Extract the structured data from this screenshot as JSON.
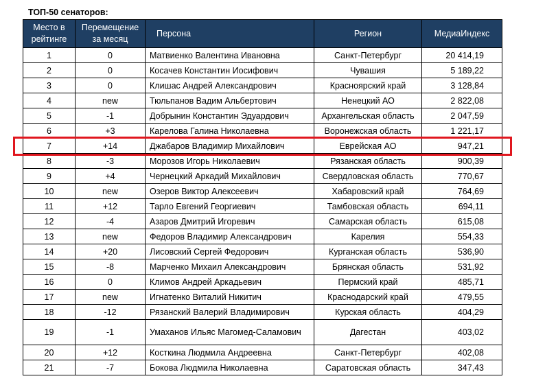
{
  "caption": "ТОП-50 сенаторов:",
  "columns": {
    "place": "Место в рейтинге",
    "move": "Перемещение за месяц",
    "person": "Персона",
    "region": "Регион",
    "index": "МедиаИндекс"
  },
  "highlight_color": "#e0161e",
  "header_color": "#1f3f63",
  "rows": [
    {
      "place": "1",
      "move": "0",
      "person": "Матвиенко Валентина Ивановна",
      "region": "Санкт-Петербург",
      "index": "20 414,19"
    },
    {
      "place": "2",
      "move": "0",
      "person": "Косачев Константин Иосифович",
      "region": "Чувашия",
      "index": "5 189,22"
    },
    {
      "place": "3",
      "move": "0",
      "person": "Клишас Андрей Александрович",
      "region": "Красноярский край",
      "index": "3 128,84"
    },
    {
      "place": "4",
      "move": "new",
      "person": "Тюльпанов Вадим Альбертович",
      "region": "Ненецкий АО",
      "index": "2 822,08"
    },
    {
      "place": "5",
      "move": "-1",
      "person": "Добрынин Константин Эдуардович",
      "region": "Архангельская область",
      "index": "2 047,59"
    },
    {
      "place": "6",
      "move": "+3",
      "person": "Карелова Галина Николаевна",
      "region": "Воронежская область",
      "index": "1 221,17"
    },
    {
      "place": "7",
      "move": "+14",
      "person": "Джабаров Владимир Михайлович",
      "region": "Еврейская АО",
      "index": "947,21",
      "highlighted": true
    },
    {
      "place": "8",
      "move": "-3",
      "person": "Морозов Игорь Николаевич",
      "region": "Рязанская область",
      "index": "900,39"
    },
    {
      "place": "9",
      "move": "+4",
      "person": "Чернецкий Аркадий Михайлович",
      "region": "Свердловская область",
      "index": "770,67"
    },
    {
      "place": "10",
      "move": "new",
      "person": "Озеров Виктор Алексеевич",
      "region": "Хабаровский край",
      "index": "764,69"
    },
    {
      "place": "11",
      "move": "+12",
      "person": "Тарло Евгений Георгиевич",
      "region": "Тамбовская область",
      "index": "694,11"
    },
    {
      "place": "12",
      "move": "-4",
      "person": "Азаров Дмитрий Игоревич",
      "region": "Самарская область",
      "index": "615,08"
    },
    {
      "place": "13",
      "move": "new",
      "person": "Федоров Владимир Александрович",
      "region": "Карелия",
      "index": "554,33"
    },
    {
      "place": "14",
      "move": "+20",
      "person": "Лисовский Сергей Федорович",
      "region": "Курганская область",
      "index": "536,90"
    },
    {
      "place": "15",
      "move": "-8",
      "person": "Марченко Михаил Александрович",
      "region": "Брянская область",
      "index": "531,92"
    },
    {
      "place": "16",
      "move": "0",
      "person": "Климов Андрей Аркадьевич",
      "region": "Пермский край",
      "index": "485,71"
    },
    {
      "place": "17",
      "move": "new",
      "person": "Игнатенко Виталий Никитич",
      "region": "Краснодарский край",
      "index": "479,55"
    },
    {
      "place": "18",
      "move": "-12",
      "person": "Рязанский Валерий Владимирович",
      "region": "Курская область",
      "index": "404,29"
    },
    {
      "place": "19",
      "move": "-1",
      "person": "Умаханов Ильяс Магомед-Саламович",
      "region": "Дагестан",
      "index": "403,02",
      "tall": true
    },
    {
      "place": "20",
      "move": "+12",
      "person": "Косткина Людмила Андреевна",
      "region": "Санкт-Петербург",
      "index": "402,08"
    },
    {
      "place": "21",
      "move": "-7",
      "person": "Бокова Людмила Николаевна",
      "region": "Саратовская область",
      "index": "347,43"
    }
  ]
}
